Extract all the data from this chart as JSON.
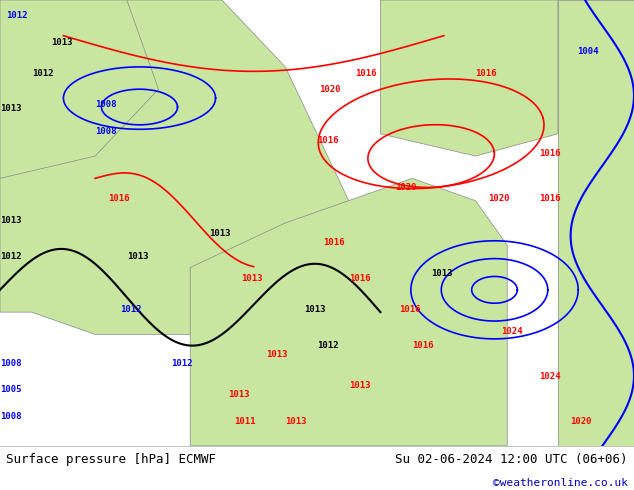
{
  "title_left": "Surface pressure [hPa] ECMWF",
  "title_right": "Su 02-06-2024 12:00 UTC (06+06)",
  "credit": "©weatheronline.co.uk",
  "bg_color": "#d0e8f0",
  "land_color": "#c8e6a0",
  "footer_bg": "#ffffff",
  "footer_text_color": "#000000",
  "credit_color": "#0000cc",
  "contour_red": "#ff0000",
  "contour_blue": "#0000ff",
  "contour_black": "#000000",
  "fig_width": 6.34,
  "fig_height": 4.9,
  "dpi": 100
}
